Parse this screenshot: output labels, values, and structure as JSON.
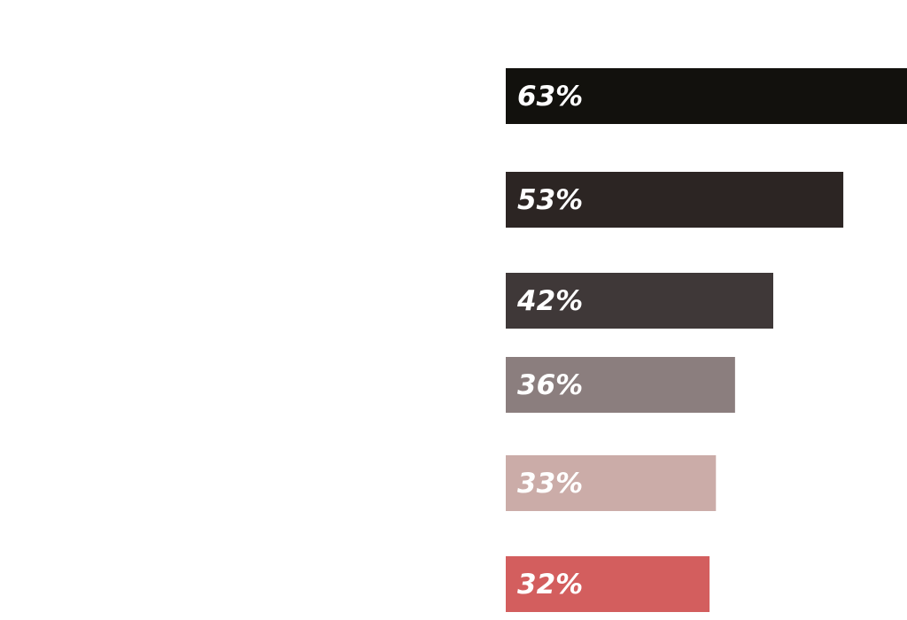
{
  "chart_data": {
    "type": "bar",
    "orientation": "horizontal",
    "values": [
      63,
      53,
      42,
      36,
      33,
      32
    ],
    "value_labels": [
      "63%",
      "53%",
      "42%",
      "36%",
      "33%",
      "32%"
    ],
    "colors": [
      "#12110d",
      "#2c2523",
      "#3f3838",
      "#8b7e7e",
      "#cbaca8",
      "#d35e5e"
    ]
  }
}
